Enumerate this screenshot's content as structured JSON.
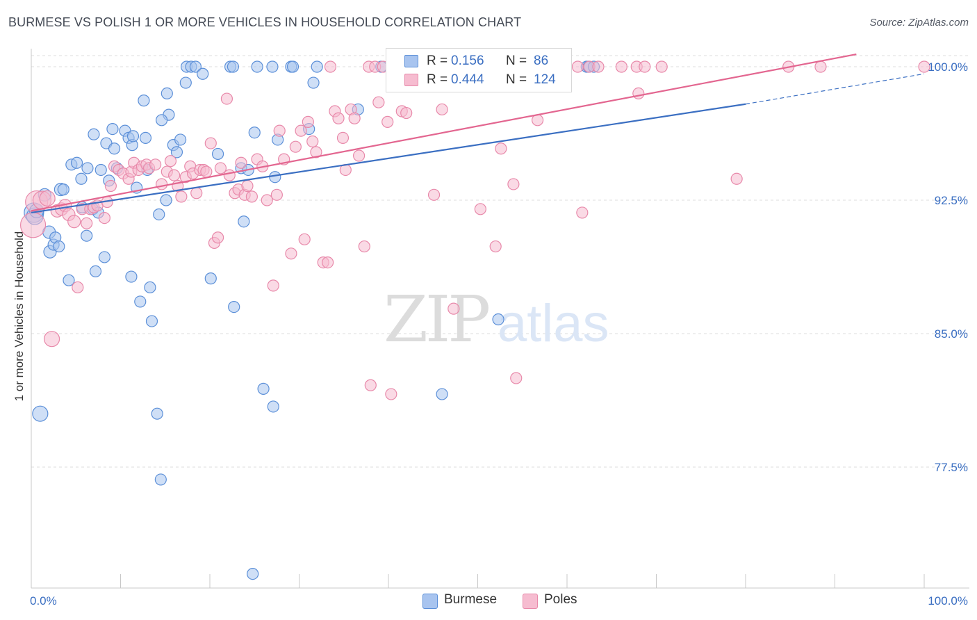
{
  "title": "BURMESE VS POLISH 1 OR MORE VEHICLES IN HOUSEHOLD CORRELATION CHART",
  "source": "Source: ZipAtlas.com",
  "watermark": {
    "zip": "ZIP",
    "atlas": "atlas"
  },
  "legend": {
    "rows": [
      {
        "r_label": "R =",
        "r_value": "0.156",
        "n_label": "N =",
        "n_value": "86"
      },
      {
        "r_label": "R =",
        "r_value": "0.444",
        "n_label": "N =",
        "n_value": "124"
      }
    ]
  },
  "bottom_legend": {
    "burmese": "Burmese",
    "poles": "Poles"
  },
  "colors": {
    "burmese_fill": "#a8c4ef",
    "burmese_stroke": "#5b8fd8",
    "burmese_line": "#3b6fc2",
    "poles_fill": "#f6bcd0",
    "poles_stroke": "#e889aa",
    "poles_line": "#e36690",
    "grid": "#dddddd",
    "tick_label": "#3b6fc2"
  },
  "chart_data": {
    "type": "scatter",
    "title": "BURMESE VS POLISH 1 OR MORE VEHICLES IN HOUSEHOLD CORRELATION CHART",
    "xlabel": "",
    "ylabel": "1 or more Vehicles in Household",
    "xlim": [
      0,
      100
    ],
    "ylim": [
      70,
      101
    ],
    "x_tick_labels": [
      "0.0%",
      "100.0%"
    ],
    "y_ticks": [
      100.0,
      92.5,
      85.0,
      77.5
    ],
    "y_tick_labels": [
      "100.0%",
      "92.5%",
      "85.0%",
      "77.5%"
    ],
    "series": [
      {
        "name": "Burmese",
        "r": 0.156,
        "n": 86,
        "trend": {
          "x0": 0,
          "y0": 91.8,
          "x1": 80,
          "y1": 97.9,
          "dash_to_x": 100,
          "dash_to_y": 99.6
        },
        "points": [
          [
            0.3,
            91.8,
            14
          ],
          [
            0.4,
            91.6,
            12
          ],
          [
            0.6,
            91.9,
            10
          ],
          [
            1.0,
            80.5,
            11
          ],
          [
            1.5,
            92.8,
            9
          ],
          [
            2.0,
            90.7,
            9
          ],
          [
            2.1,
            89.6,
            9
          ],
          [
            2.5,
            90.0,
            8
          ],
          [
            2.7,
            90.4,
            8
          ],
          [
            3.1,
            89.9,
            8
          ],
          [
            3.3,
            93.1,
            9
          ],
          [
            3.6,
            93.1,
            8
          ],
          [
            4.2,
            88.0,
            8
          ],
          [
            4.5,
            94.5,
            8
          ],
          [
            5.1,
            94.6,
            8
          ],
          [
            5.6,
            93.7,
            8
          ],
          [
            5.7,
            92.1,
            8
          ],
          [
            6.2,
            90.5,
            8
          ],
          [
            6.3,
            94.3,
            8
          ],
          [
            6.9,
            92.0,
            8
          ],
          [
            7.0,
            96.2,
            8
          ],
          [
            7.2,
            88.5,
            8
          ],
          [
            7.5,
            91.8,
            8
          ],
          [
            7.8,
            94.2,
            8
          ],
          [
            8.2,
            89.3,
            8
          ],
          [
            8.4,
            95.7,
            8
          ],
          [
            8.7,
            93.6,
            8
          ],
          [
            9.1,
            96.5,
            8
          ],
          [
            9.3,
            95.4,
            8
          ],
          [
            9.6,
            94.3,
            8
          ],
          [
            10.5,
            96.4,
            8
          ],
          [
            10.9,
            96.0,
            8
          ],
          [
            11.2,
            88.2,
            8
          ],
          [
            11.3,
            95.6,
            8
          ],
          [
            11.4,
            96.1,
            8
          ],
          [
            11.8,
            93.2,
            8
          ],
          [
            12.2,
            86.8,
            8
          ],
          [
            12.6,
            98.1,
            8
          ],
          [
            13.0,
            94.2,
            8
          ],
          [
            13.3,
            87.6,
            8
          ],
          [
            13.5,
            85.7,
            8
          ],
          [
            14.1,
            80.5,
            8
          ],
          [
            14.3,
            91.7,
            8
          ],
          [
            14.5,
            76.8,
            8
          ],
          [
            15.1,
            92.5,
            8
          ],
          [
            15.2,
            98.5,
            8
          ],
          [
            15.4,
            97.3,
            8
          ],
          [
            15.9,
            95.6,
            8
          ],
          [
            16.3,
            95.2,
            8
          ],
          [
            16.7,
            95.9,
            8
          ],
          [
            17.3,
            99.1,
            8
          ],
          [
            17.4,
            100.0,
            8
          ],
          [
            17.9,
            100.0,
            8
          ],
          [
            18.4,
            100.0,
            8
          ],
          [
            19.2,
            99.6,
            8
          ],
          [
            20.1,
            88.1,
            8
          ],
          [
            20.9,
            95.1,
            8
          ],
          [
            22.3,
            100.0,
            8
          ],
          [
            22.6,
            100.0,
            8
          ],
          [
            22.7,
            86.5,
            8
          ],
          [
            23.5,
            94.3,
            8
          ],
          [
            23.8,
            91.3,
            8
          ],
          [
            24.3,
            94.2,
            8
          ],
          [
            24.8,
            71.5,
            8
          ],
          [
            25.0,
            96.3,
            8
          ],
          [
            25.3,
            100.0,
            8
          ],
          [
            26.0,
            81.9,
            8
          ],
          [
            27.0,
            100.0,
            8
          ],
          [
            27.1,
            80.9,
            8
          ],
          [
            27.3,
            93.8,
            8
          ],
          [
            27.6,
            95.9,
            8
          ],
          [
            29.1,
            100.0,
            8
          ],
          [
            29.3,
            100.0,
            8
          ],
          [
            31.1,
            96.5,
            8
          ],
          [
            31.6,
            99.1,
            8
          ],
          [
            32.0,
            100.0,
            8
          ],
          [
            36.6,
            97.6,
            8
          ],
          [
            39.2,
            100.0,
            8
          ],
          [
            42.3,
            100.0,
            8
          ],
          [
            46.0,
            81.6,
            8
          ],
          [
            52.3,
            85.8,
            8
          ],
          [
            62.2,
            100.0,
            8
          ],
          [
            62.4,
            100.0,
            8
          ],
          [
            63.0,
            100.0,
            8
          ],
          [
            12.8,
            96.0,
            8
          ],
          [
            14.6,
            97.0,
            8
          ]
        ]
      },
      {
        "name": "Poles",
        "r": 0.444,
        "n": 124,
        "trend": {
          "x0": 0,
          "y0": 91.9,
          "x1": 92.4,
          "y1": 100.7
        },
        "points": [
          [
            0.2,
            91.1,
            18
          ],
          [
            0.6,
            92.4,
            16
          ],
          [
            1.2,
            92.5,
            13
          ],
          [
            1.8,
            92.6,
            11
          ],
          [
            2.3,
            84.7,
            11
          ],
          [
            2.9,
            91.9,
            9
          ],
          [
            3.4,
            92.0,
            9
          ],
          [
            3.8,
            92.2,
            9
          ],
          [
            4.2,
            91.7,
            9
          ],
          [
            4.8,
            91.3,
            9
          ],
          [
            5.2,
            87.6,
            8
          ],
          [
            5.7,
            92.0,
            8
          ],
          [
            6.2,
            91.2,
            8
          ],
          [
            6.6,
            92.0,
            8
          ],
          [
            7.0,
            92.1,
            8
          ],
          [
            7.4,
            92.2,
            8
          ],
          [
            8.2,
            91.5,
            8
          ],
          [
            8.5,
            92.4,
            8
          ],
          [
            8.9,
            93.3,
            8
          ],
          [
            9.3,
            94.4,
            8
          ],
          [
            9.8,
            94.2,
            8
          ],
          [
            10.3,
            94.0,
            8
          ],
          [
            10.9,
            93.7,
            8
          ],
          [
            11.2,
            94.1,
            8
          ],
          [
            11.5,
            94.6,
            8
          ],
          [
            12.0,
            94.2,
            8
          ],
          [
            12.4,
            94.4,
            8
          ],
          [
            12.9,
            94.5,
            8
          ],
          [
            13.2,
            94.3,
            8
          ],
          [
            13.9,
            94.5,
            8
          ],
          [
            14.6,
            93.4,
            8
          ],
          [
            15.2,
            94.1,
            8
          ],
          [
            15.6,
            94.7,
            8
          ],
          [
            16.0,
            93.9,
            8
          ],
          [
            16.4,
            93.3,
            8
          ],
          [
            16.8,
            92.7,
            8
          ],
          [
            17.3,
            93.8,
            8
          ],
          [
            17.8,
            94.4,
            8
          ],
          [
            18.1,
            94.0,
            8
          ],
          [
            18.5,
            92.9,
            8
          ],
          [
            18.9,
            94.2,
            8
          ],
          [
            19.3,
            94.2,
            8
          ],
          [
            19.6,
            94.1,
            8
          ],
          [
            20.1,
            95.7,
            8
          ],
          [
            20.5,
            90.1,
            8
          ],
          [
            20.9,
            90.4,
            8
          ],
          [
            21.2,
            94.3,
            8
          ],
          [
            21.9,
            98.2,
            8
          ],
          [
            22.2,
            93.9,
            8
          ],
          [
            22.8,
            92.9,
            8
          ],
          [
            23.2,
            93.1,
            8
          ],
          [
            23.5,
            94.6,
            8
          ],
          [
            23.9,
            92.8,
            8
          ],
          [
            24.2,
            93.3,
            8
          ],
          [
            24.7,
            92.7,
            8
          ],
          [
            25.3,
            94.8,
            8
          ],
          [
            25.9,
            94.4,
            8
          ],
          [
            26.4,
            92.5,
            8
          ],
          [
            27.1,
            87.7,
            8
          ],
          [
            27.5,
            92.8,
            8
          ],
          [
            27.8,
            96.4,
            8
          ],
          [
            28.3,
            94.8,
            8
          ],
          [
            29.1,
            89.5,
            8
          ],
          [
            29.6,
            95.5,
            8
          ],
          [
            30.2,
            96.4,
            8
          ],
          [
            30.6,
            90.3,
            8
          ],
          [
            31.0,
            96.9,
            8
          ],
          [
            31.5,
            95.8,
            8
          ],
          [
            31.9,
            95.2,
            8
          ],
          [
            32.7,
            89.0,
            8
          ],
          [
            33.2,
            89.0,
            8
          ],
          [
            33.5,
            100.0,
            8
          ],
          [
            34.0,
            97.5,
            8
          ],
          [
            34.4,
            97.1,
            8
          ],
          [
            34.9,
            96.0,
            8
          ],
          [
            35.2,
            94.2,
            8
          ],
          [
            35.8,
            97.6,
            8
          ],
          [
            36.2,
            97.1,
            8
          ],
          [
            36.7,
            95.0,
            8
          ],
          [
            37.3,
            89.9,
            8
          ],
          [
            37.8,
            100.0,
            8
          ],
          [
            38.0,
            82.1,
            8
          ],
          [
            38.5,
            100.0,
            8
          ],
          [
            38.9,
            98.0,
            8
          ],
          [
            39.4,
            100.0,
            8
          ],
          [
            39.9,
            96.9,
            8
          ],
          [
            40.3,
            81.6,
            8
          ],
          [
            40.8,
            100.0,
            8
          ],
          [
            41.1,
            99.5,
            8
          ],
          [
            41.5,
            97.5,
            8
          ],
          [
            42.0,
            97.4,
            8
          ],
          [
            42.6,
            100.0,
            8
          ],
          [
            43.1,
            100.0,
            8
          ],
          [
            44.0,
            100.0,
            8
          ],
          [
            44.6,
            100.0,
            8
          ],
          [
            45.1,
            92.8,
            8
          ],
          [
            45.5,
            100.0,
            8
          ],
          [
            46.0,
            97.6,
            8
          ],
          [
            47.3,
            86.4,
            8
          ],
          [
            48.2,
            100.0,
            8
          ],
          [
            49.7,
            100.0,
            8
          ],
          [
            50.3,
            92.0,
            8
          ],
          [
            51.0,
            100.0,
            8
          ],
          [
            51.6,
            100.0,
            8
          ],
          [
            52.0,
            89.9,
            8
          ],
          [
            52.6,
            95.4,
            8
          ],
          [
            53.2,
            100.0,
            8
          ],
          [
            54.0,
            93.4,
            8
          ],
          [
            54.3,
            82.5,
            8
          ],
          [
            55.6,
            100.0,
            8
          ],
          [
            56.7,
            97.0,
            8
          ],
          [
            57.2,
            100.0,
            8
          ],
          [
            57.8,
            100.0,
            8
          ],
          [
            59.0,
            100.0,
            8
          ],
          [
            59.7,
            100.0,
            8
          ],
          [
            61.2,
            100.0,
            8
          ],
          [
            61.7,
            91.8,
            8
          ],
          [
            62.5,
            100.0,
            8
          ],
          [
            63.5,
            100.0,
            8
          ],
          [
            66.1,
            100.0,
            8
          ],
          [
            67.8,
            100.0,
            8
          ],
          [
            68.0,
            98.5,
            8
          ],
          [
            68.7,
            100.0,
            8
          ],
          [
            70.6,
            100.0,
            8
          ],
          [
            79.0,
            93.7,
            8
          ],
          [
            84.8,
            100.0,
            8
          ],
          [
            88.4,
            100.0,
            8
          ],
          [
            100.0,
            100.0,
            8
          ]
        ]
      }
    ]
  }
}
